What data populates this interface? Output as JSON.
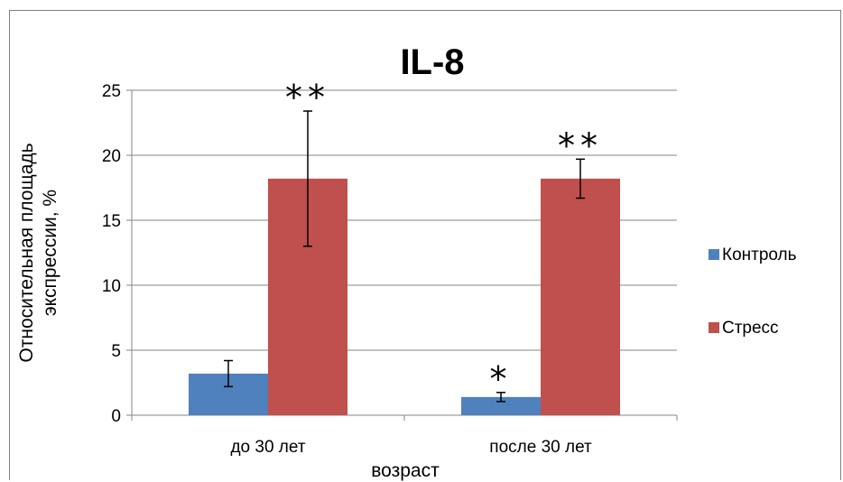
{
  "chart_data": {
    "type": "bar",
    "title": "IL-8",
    "xlabel": "возраст",
    "ylabel_lines": [
      "Относительная площадь",
      "экспрессии, %"
    ],
    "categories": [
      "до 30 лет",
      "после 30 лет"
    ],
    "series": [
      {
        "name": "Контроль",
        "color": "#4f81bd",
        "values": [
          3.2,
          1.4
        ],
        "errors": [
          1.0,
          0.35
        ],
        "significance": [
          "",
          "*"
        ]
      },
      {
        "name": "Стресс",
        "color": "#c0504d",
        "values": [
          18.2,
          18.2
        ],
        "errors": [
          5.2,
          1.5
        ],
        "significance": [
          "**",
          "**"
        ]
      }
    ],
    "ylim": [
      0,
      25
    ],
    "yticks": [
      0,
      5,
      10,
      15,
      20,
      25
    ],
    "grid": true,
    "legend_position": "right"
  }
}
